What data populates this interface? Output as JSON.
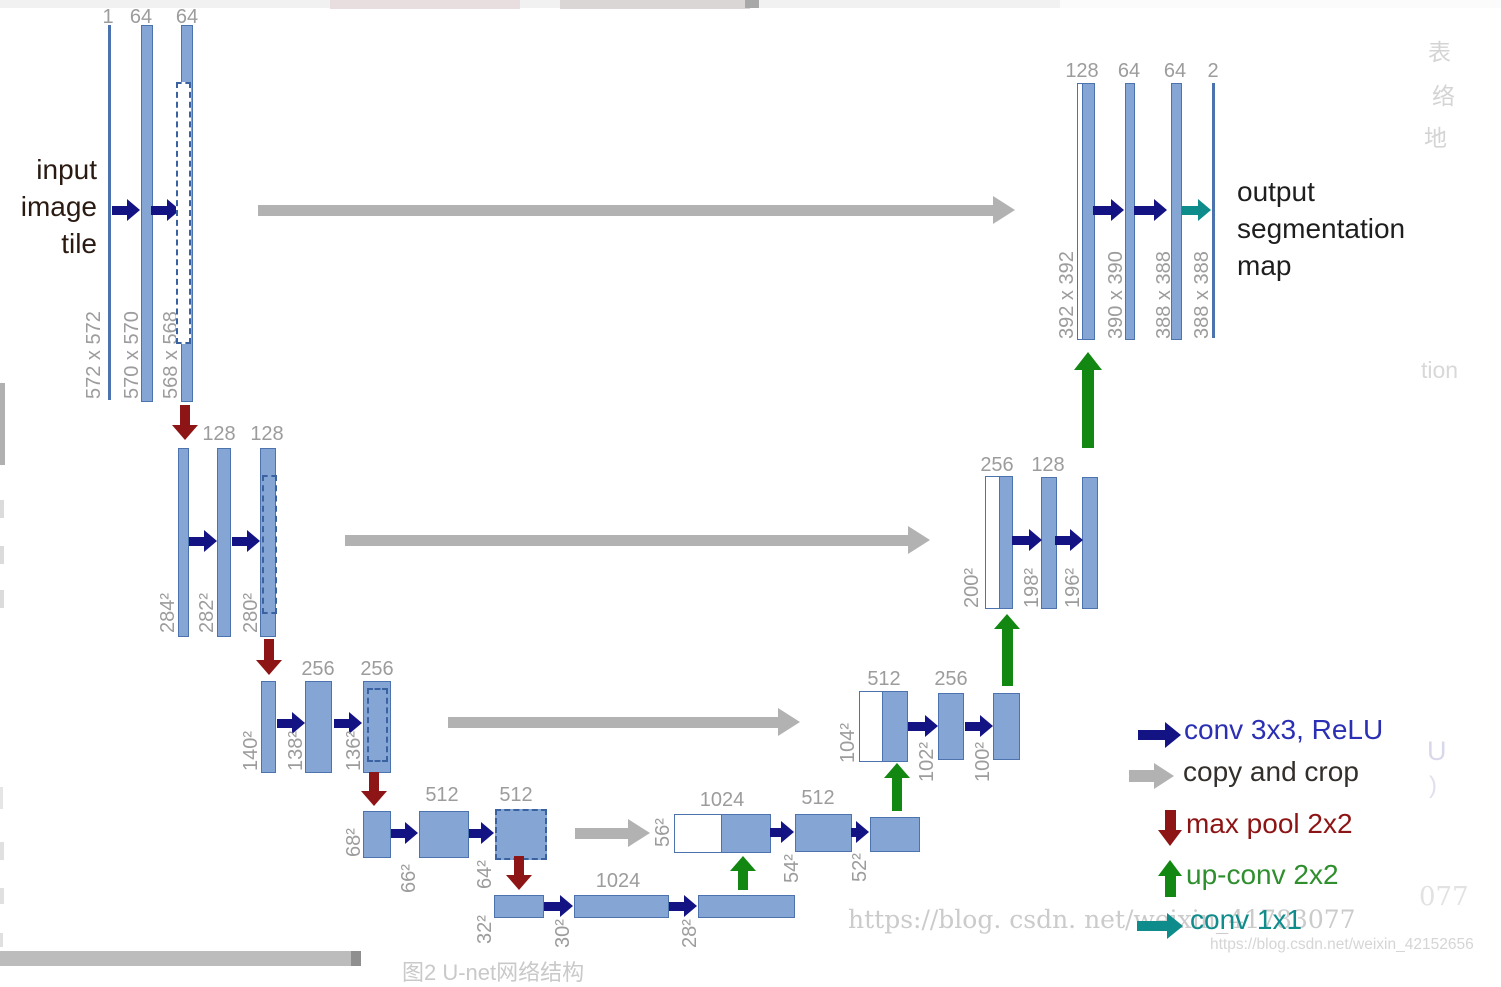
{
  "colors": {
    "bar_fill": "#85a6d4",
    "bar_border": "#4c73ae",
    "dash_border": "#3a62a0",
    "conv_arrow": "#131384",
    "copy_arrow": "#b2b2b2",
    "pool_arrow": "#8e1515",
    "upconv_arrow": "#128712",
    "conv1x1_arrow": "#0e8b8b",
    "gray_label": "#9c9c9c",
    "input_text": "#2a1a12",
    "output_text": "#1e1e1e"
  },
  "annotations": {
    "input_label": [
      "input",
      "image",
      "tile"
    ],
    "output_label": [
      "output",
      "segmentation",
      "map"
    ]
  },
  "network": {
    "encoder": [
      {
        "channels": [
          "1",
          "64",
          "64"
        ],
        "sizes": [
          "572 x 572",
          "570 x 570",
          "568 x 568"
        ]
      },
      {
        "channels": [
          "128",
          "128"
        ],
        "sizes": [
          "284²",
          "282²",
          "280²"
        ]
      },
      {
        "channels": [
          "256",
          "256"
        ],
        "sizes": [
          "140²",
          "138²",
          "136²"
        ]
      },
      {
        "channels": [
          "512",
          "512"
        ],
        "sizes": [
          "68²",
          "66²",
          "64²"
        ]
      },
      {
        "channels": [
          "1024"
        ],
        "sizes": [
          "32²",
          "30²",
          "28²"
        ]
      }
    ],
    "decoder": [
      {
        "channels": [
          "1024",
          "512"
        ],
        "sizes": [
          "56²",
          "54²",
          "52²"
        ]
      },
      {
        "channels": [
          "512",
          "256"
        ],
        "sizes": [
          "104²",
          "102²",
          "100²"
        ]
      },
      {
        "channels": [
          "256",
          "128"
        ],
        "sizes": [
          "200²",
          "198²",
          "196²"
        ]
      },
      {
        "channels": [
          "128",
          "64",
          "64",
          "2"
        ],
        "sizes": [
          "392 x 392",
          "390 x 390",
          "388 x 388",
          "388 x 388"
        ]
      }
    ]
  },
  "legend": [
    {
      "name": "conv-3x3",
      "label": "conv 3x3, ReLU",
      "color": "#2a2fb4"
    },
    {
      "name": "copy-and-crop",
      "label": "copy and crop",
      "color": "#332f2b"
    },
    {
      "name": "max-pool",
      "label": "max pool 2x2",
      "color": "#8d1414"
    },
    {
      "name": "up-conv",
      "label": "up-conv 2x2",
      "color": "#2f8f2f"
    },
    {
      "name": "conv-1x1",
      "label": "conv 1x1",
      "color": "#0f8c8c"
    }
  ],
  "watermarks": {
    "large": "https://blog. csdn. net/weixin_41783077",
    "small": "https://blog.csdn.net/weixin_42152656",
    "fragment_077": "077",
    "fragment_u": "U",
    "fragment_paren": ")",
    "fragment_tion": "tion",
    "side_chars": [
      "表",
      "络",
      "地"
    ]
  },
  "caption": "图2 U-net网络结构"
}
